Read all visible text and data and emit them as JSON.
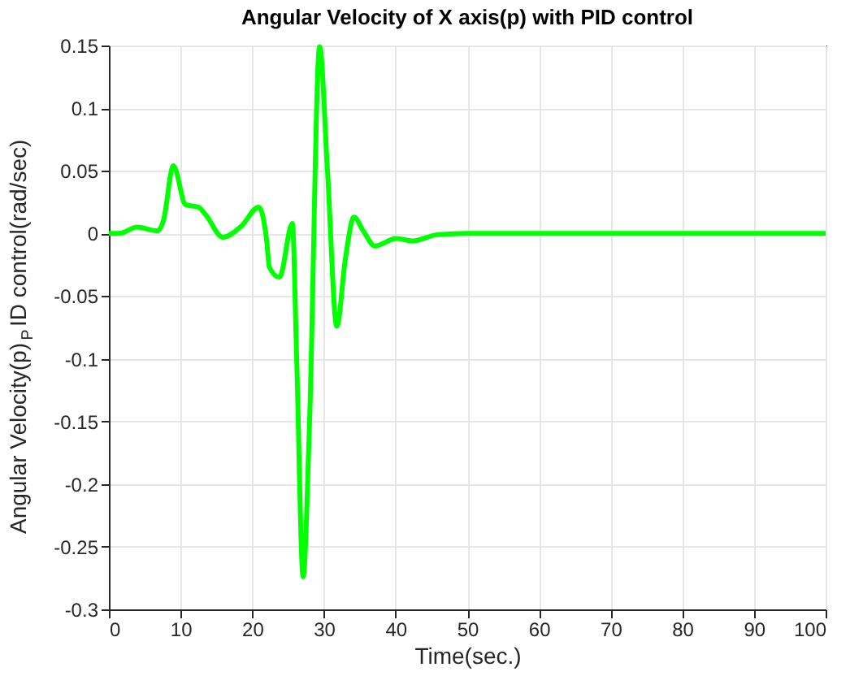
{
  "chart_data": {
    "type": "line",
    "title": "Angular Velocity of X axis(p) with PID control",
    "xlabel": "Time(sec.)",
    "ylabel": "Angular Velocity(p)$_{P}$ID control(rad/sec)",
    "series": [
      {
        "color": "#00ff00",
        "x": [
          0,
          1.5,
          3.9,
          6.8,
          7.6,
          9.0,
          10.7,
          12.5,
          13.5,
          15.9,
          18.5,
          20.9,
          22.0,
          22.4,
          23.8,
          25.6,
          26.2,
          27.1,
          28.0,
          29.4,
          30.5,
          31.8,
          33.0,
          34.2,
          35.5,
          37.1,
          40.1,
          42.4,
          45.8,
          50,
          60,
          80,
          100
        ],
        "values": [
          0,
          0,
          0.005,
          0.002,
          0.01,
          0.054,
          0.023,
          0.021,
          0.015,
          -0.003,
          0.006,
          0.021,
          -0.005,
          -0.027,
          -0.035,
          0.008,
          -0.1,
          -0.274,
          -0.15,
          0.149,
          0.05,
          -0.074,
          -0.02,
          0.013,
          0.002,
          -0.01,
          -0.004,
          -0.006,
          -0.001,
          0,
          0,
          0,
          0
        ]
      }
    ],
    "xlim": [
      0,
      100
    ],
    "xticks": [
      0,
      10,
      20,
      30,
      40,
      50,
      60,
      70,
      80,
      90,
      100
    ],
    "ylim": [
      -0.3,
      0.15
    ],
    "yticks": [
      -0.3,
      -0.25,
      -0.2,
      -0.15,
      -0.1,
      -0.05,
      0,
      0.05,
      0.1,
      0.15
    ],
    "grid": true,
    "line_style": "solid",
    "marker": "none"
  }
}
